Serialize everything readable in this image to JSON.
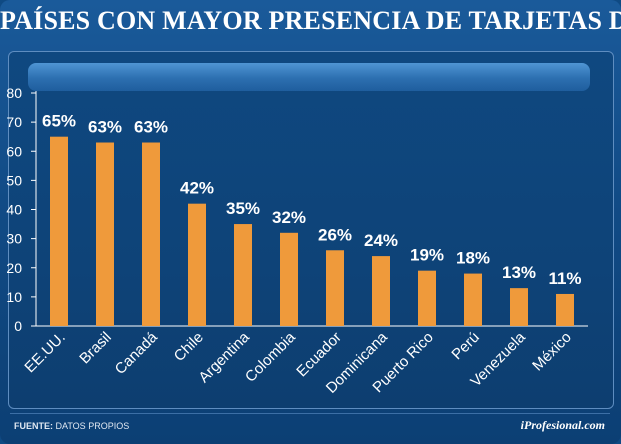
{
  "header": {
    "title": "PAÍSES CON MAYOR PRESENCIA DE TARJETAS DE CRÉDITO"
  },
  "footer": {
    "source_label": "FUENTE:",
    "source_text": "DATOS PROPIOS",
    "brand": "iProfesional.com"
  },
  "colors": {
    "bar": "#ef9a3b",
    "axis": "#ffffff"
  },
  "chart_data": {
    "type": "bar",
    "title": "PAÍSES CON MAYOR PRESENCIA DE TARJETAS DE CRÉDITO",
    "xlabel": "",
    "ylabel": "",
    "ylim": [
      0,
      80
    ],
    "yticks": [
      0,
      10,
      20,
      30,
      40,
      50,
      60,
      70,
      80
    ],
    "grid": false,
    "categories": [
      "EE.UU.",
      "Brasil",
      "Canadá",
      "Chile",
      "Argentina",
      "Colombia",
      "Ecuador",
      "Dominicana",
      "Puerto Rico",
      "Perú",
      "Venezuela",
      "México"
    ],
    "values": [
      65,
      63,
      63,
      42,
      35,
      32,
      26,
      24,
      19,
      18,
      13,
      11
    ],
    "data_labels": [
      "65%",
      "63%",
      "63%",
      "42%",
      "35%",
      "32%",
      "26%",
      "24%",
      "19%",
      "18%",
      "13%",
      "11%"
    ]
  }
}
